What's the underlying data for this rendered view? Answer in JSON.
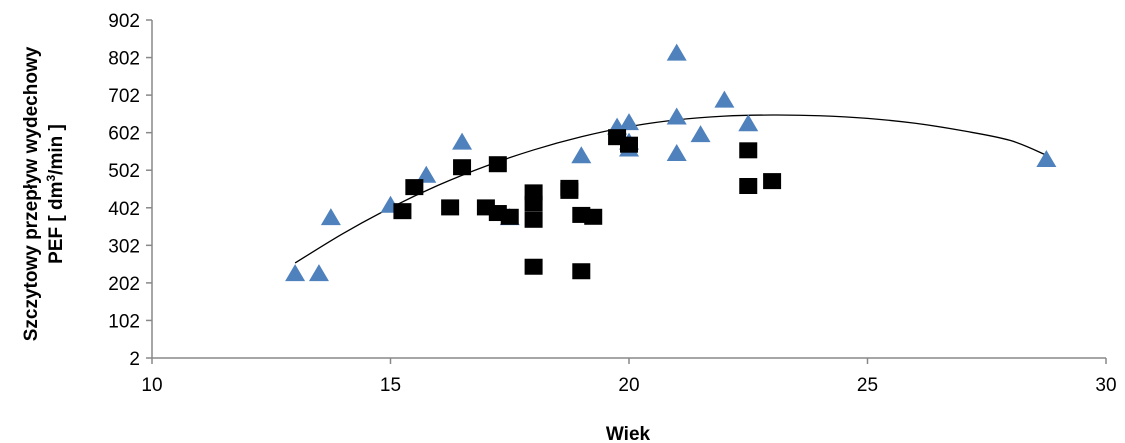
{
  "chart_data": {
    "type": "scatter",
    "xlabel": "Wiek",
    "ylabel_line1": "Szczytowy przepływ wydechowy",
    "ylabel_line2_prefix": "PEF [ dm",
    "ylabel_line2_sup": "3",
    "ylabel_line2_suffix": "/min ]",
    "xlim": [
      10,
      30
    ],
    "ylim": [
      2,
      902
    ],
    "x_ticks": [
      "10",
      "15",
      "20",
      "25",
      "30"
    ],
    "y_ticks": [
      "2",
      "102",
      "202",
      "302",
      "402",
      "502",
      "602",
      "702",
      "802",
      "902"
    ],
    "x_tick_values": [
      10,
      15,
      20,
      25,
      30
    ],
    "y_tick_values": [
      2,
      102,
      202,
      302,
      402,
      502,
      602,
      702,
      802,
      902
    ],
    "grid": false,
    "colors": {
      "triangles": "#4f81bd",
      "squares": "#000000",
      "trend": "#000000"
    },
    "series": [
      {
        "marker": "triangle",
        "points": [
          [
            13.0,
            228
          ],
          [
            13.5,
            228
          ],
          [
            13.75,
            377
          ],
          [
            15.0,
            410
          ],
          [
            15.75,
            490
          ],
          [
            16.5,
            578
          ],
          [
            17.5,
            377
          ],
          [
            19.0,
            542
          ],
          [
            19.75,
            618
          ],
          [
            20.0,
            630
          ],
          [
            20.0,
            578
          ],
          [
            20.0,
            560
          ],
          [
            21.0,
            548
          ],
          [
            21.0,
            645
          ],
          [
            21.0,
            815
          ],
          [
            21.5,
            598
          ],
          [
            22.0,
            690
          ],
          [
            22.5,
            627
          ],
          [
            28.75,
            532
          ]
        ]
      },
      {
        "marker": "square",
        "points": [
          [
            15.25,
            393
          ],
          [
            15.5,
            457
          ],
          [
            16.25,
            403
          ],
          [
            16.5,
            510
          ],
          [
            17.0,
            403
          ],
          [
            17.25,
            518
          ],
          [
            17.25,
            388
          ],
          [
            17.5,
            378
          ],
          [
            18.0,
            443
          ],
          [
            18.0,
            413
          ],
          [
            18.0,
            370
          ],
          [
            18.0,
            245
          ],
          [
            18.75,
            455
          ],
          [
            18.75,
            447
          ],
          [
            19.0,
            233
          ],
          [
            19.0,
            383
          ],
          [
            19.25,
            378
          ],
          [
            19.75,
            590
          ],
          [
            20.0,
            570
          ],
          [
            22.5,
            555
          ],
          [
            22.5,
            460
          ],
          [
            23.0,
            473
          ]
        ]
      }
    ],
    "trendline": {
      "type": "polynomial-2",
      "points": [
        [
          13.0,
          255
        ],
        [
          14.0,
          333
        ],
        [
          15.0,
          402
        ],
        [
          16.0,
          462
        ],
        [
          17.0,
          513
        ],
        [
          18.0,
          556
        ],
        [
          19.0,
          591
        ],
        [
          20.0,
          618
        ],
        [
          21.0,
          636
        ],
        [
          22.0,
          646
        ],
        [
          23.0,
          649
        ],
        [
          24.0,
          647
        ],
        [
          25.0,
          640
        ],
        [
          26.0,
          627
        ],
        [
          27.0,
          607
        ],
        [
          28.0,
          581
        ],
        [
          28.75,
          542
        ]
      ]
    }
  }
}
